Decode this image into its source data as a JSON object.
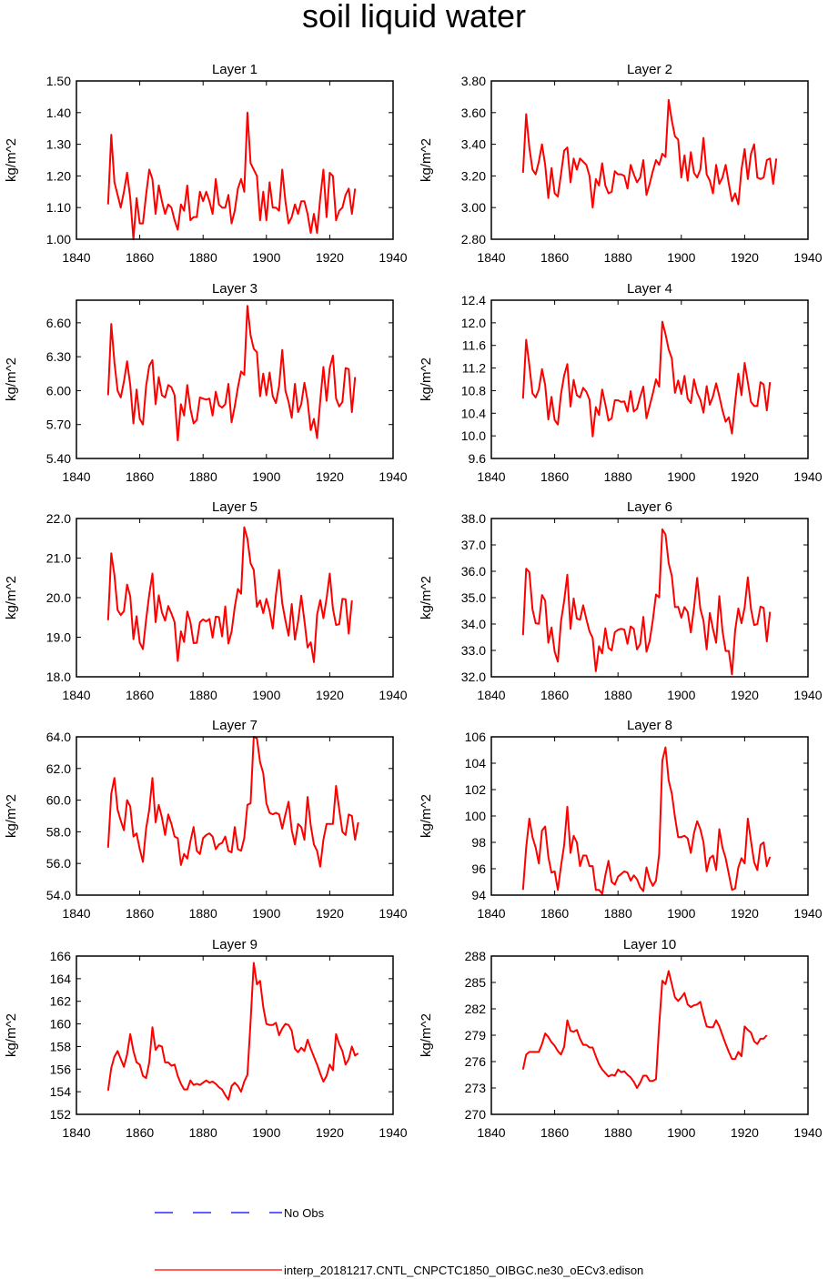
{
  "title": "soil liquid water",
  "legend": {
    "obs_label": "No Obs",
    "model_label": "interp_20181217.CNTL_CNPCTC1850_OIBGC.ne30_oECv3.edison",
    "obs_color": "#0000ff",
    "model_color": "#ff0000"
  },
  "chart_data": [
    {
      "type": "line",
      "title": "Layer 1",
      "xlabel": "",
      "ylabel": "kg/m^2",
      "xlim": [
        1840,
        1940
      ],
      "ylim": [
        1.0,
        1.5
      ],
      "xticks": [
        "1840",
        "1860",
        "1880",
        "1900",
        "1920",
        "1940"
      ],
      "yticks": [
        "1.00",
        "1.10",
        "1.20",
        "1.30",
        "1.40",
        "1.50"
      ],
      "x_start": 1850,
      "values": [
        1.11,
        1.33,
        1.18,
        1.14,
        1.1,
        1.15,
        1.21,
        1.13,
        1.0,
        1.13,
        1.05,
        1.05,
        1.14,
        1.22,
        1.19,
        1.08,
        1.17,
        1.12,
        1.08,
        1.11,
        1.1,
        1.06,
        1.03,
        1.11,
        1.09,
        1.17,
        1.06,
        1.07,
        1.07,
        1.15,
        1.12,
        1.15,
        1.12,
        1.08,
        1.19,
        1.11,
        1.1,
        1.1,
        1.14,
        1.05,
        1.09,
        1.16,
        1.19,
        1.15,
        1.4,
        1.24,
        1.22,
        1.2,
        1.06,
        1.15,
        1.06,
        1.18,
        1.1,
        1.1,
        1.09,
        1.22,
        1.12,
        1.05,
        1.07,
        1.11,
        1.08,
        1.12,
        1.12,
        1.08,
        1.02,
        1.08,
        1.02,
        1.13,
        1.22,
        1.07,
        1.21,
        1.2,
        1.06,
        1.09,
        1.1,
        1.14,
        1.16,
        1.08,
        1.16
      ]
    },
    {
      "type": "line",
      "title": "Layer 2",
      "xlabel": "",
      "ylabel": "kg/m^2",
      "xlim": [
        1840,
        1940
      ],
      "ylim": [
        2.8,
        3.8
      ],
      "xticks": [
        "1840",
        "1860",
        "1880",
        "1900",
        "1920",
        "1940"
      ],
      "yticks": [
        "2.80",
        "3.00",
        "3.20",
        "3.40",
        "3.60",
        "3.80"
      ],
      "x_start": 1850,
      "values": [
        3.22,
        3.59,
        3.38,
        3.24,
        3.21,
        3.29,
        3.4,
        3.27,
        3.06,
        3.25,
        3.09,
        3.07,
        3.21,
        3.36,
        3.38,
        3.16,
        3.31,
        3.24,
        3.31,
        3.29,
        3.27,
        3.2,
        3.0,
        3.18,
        3.14,
        3.28,
        3.14,
        3.09,
        3.1,
        3.23,
        3.21,
        3.21,
        3.2,
        3.12,
        3.27,
        3.21,
        3.16,
        3.19,
        3.3,
        3.08,
        3.15,
        3.23,
        3.3,
        3.27,
        3.34,
        3.32,
        3.68,
        3.55,
        3.45,
        3.43,
        3.19,
        3.33,
        3.17,
        3.35,
        3.22,
        3.19,
        3.24,
        3.44,
        3.21,
        3.17,
        3.09,
        3.27,
        3.15,
        3.19,
        3.27,
        3.15,
        3.04,
        3.09,
        3.02,
        3.24,
        3.37,
        3.18,
        3.34,
        3.4,
        3.19,
        3.18,
        3.19,
        3.3,
        3.31,
        3.15,
        3.31
      ]
    },
    {
      "type": "line",
      "title": "Layer 3",
      "xlabel": "",
      "ylabel": "kg/m^2",
      "xlim": [
        1840,
        1940
      ],
      "ylim": [
        5.4,
        6.8
      ],
      "xticks": [
        "1840",
        "1860",
        "1880",
        "1900",
        "1920",
        "1940"
      ],
      "yticks": [
        "5.40",
        "5.70",
        "6.00",
        "6.30",
        "6.60"
      ],
      "x_start": 1850,
      "values": [
        5.96,
        6.59,
        6.25,
        6.0,
        5.94,
        6.08,
        6.26,
        6.05,
        5.71,
        6.01,
        5.75,
        5.7,
        6.04,
        6.22,
        6.27,
        5.88,
        6.12,
        5.96,
        5.94,
        6.05,
        6.03,
        5.96,
        5.56,
        5.88,
        5.78,
        6.05,
        5.84,
        5.71,
        5.74,
        5.94,
        5.93,
        5.92,
        5.93,
        5.78,
        5.99,
        5.87,
        5.85,
        5.88,
        6.06,
        5.72,
        5.86,
        6.03,
        6.17,
        6.14,
        6.75,
        6.49,
        6.37,
        6.34,
        5.95,
        6.15,
        5.96,
        6.16,
        5.95,
        5.89,
        6.04,
        6.36,
        6.0,
        5.9,
        5.76,
        6.06,
        5.81,
        5.88,
        6.07,
        5.91,
        5.65,
        5.75,
        5.58,
        5.91,
        6.21,
        5.91,
        6.2,
        6.31,
        5.93,
        5.86,
        5.9,
        6.2,
        6.19,
        5.81,
        6.12
      ]
    },
    {
      "type": "line",
      "title": "Layer 4",
      "xlabel": "",
      "ylabel": "kg/m^2",
      "xlim": [
        1840,
        1940
      ],
      "ylim": [
        9.6,
        12.4
      ],
      "xticks": [
        "1840",
        "1860",
        "1880",
        "1900",
        "1920",
        "1940"
      ],
      "yticks": [
        "9.6",
        "10.0",
        "10.4",
        "10.8",
        "11.2",
        "11.6",
        "12.0",
        "12.4"
      ],
      "x_start": 1850,
      "values": [
        10.66,
        11.7,
        11.25,
        10.75,
        10.68,
        10.82,
        11.18,
        10.9,
        10.29,
        10.69,
        10.28,
        10.2,
        10.74,
        11.07,
        11.27,
        10.52,
        10.99,
        10.72,
        10.68,
        10.85,
        10.78,
        10.64,
        9.99,
        10.51,
        10.37,
        10.82,
        10.56,
        10.27,
        10.31,
        10.63,
        10.63,
        10.6,
        10.61,
        10.43,
        10.79,
        10.43,
        10.48,
        10.69,
        10.87,
        10.31,
        10.53,
        10.75,
        11.0,
        10.87,
        12.02,
        11.8,
        11.53,
        11.37,
        10.76,
        10.98,
        10.74,
        11.06,
        10.66,
        10.58,
        11.0,
        10.76,
        10.64,
        10.41,
        10.88,
        10.55,
        10.7,
        10.93,
        10.7,
        10.45,
        10.25,
        10.33,
        10.04,
        10.6,
        11.1,
        10.72,
        11.29,
        10.95,
        10.6,
        10.53,
        10.53,
        10.95,
        10.91,
        10.45,
        10.95
      ]
    },
    {
      "type": "line",
      "title": "Layer 5",
      "xlabel": "",
      "ylabel": "kg/m^2",
      "xlim": [
        1840,
        1940
      ],
      "ylim": [
        18.0,
        22.0
      ],
      "xticks": [
        "1840",
        "1860",
        "1880",
        "1900",
        "1920",
        "1940"
      ],
      "yticks": [
        "18.0",
        "19.0",
        "20.0",
        "21.0",
        "22.0"
      ],
      "x_start": 1850,
      "values": [
        19.43,
        21.12,
        20.57,
        19.69,
        19.56,
        19.66,
        20.33,
        20.03,
        18.95,
        19.53,
        18.86,
        18.7,
        19.44,
        20.08,
        20.61,
        19.38,
        20.06,
        19.63,
        19.42,
        19.79,
        19.6,
        19.38,
        18.4,
        19.15,
        18.88,
        19.65,
        19.38,
        18.85,
        18.86,
        19.38,
        19.45,
        19.4,
        19.46,
        18.99,
        19.52,
        19.51,
        19.02,
        19.78,
        18.84,
        19.14,
        19.76,
        20.22,
        20.1,
        21.78,
        21.49,
        20.87,
        20.7,
        19.77,
        19.93,
        19.61,
        19.97,
        19.67,
        19.22,
        20.07,
        20.7,
        19.86,
        19.42,
        19.04,
        19.84,
        18.94,
        19.4,
        20.05,
        19.42,
        18.74,
        18.87,
        18.37,
        19.57,
        19.94,
        19.48,
        19.98,
        20.61,
        19.72,
        19.31,
        19.33,
        19.97,
        19.96,
        19.09,
        19.93
      ]
    },
    {
      "type": "line",
      "title": "Layer 6",
      "xlabel": "",
      "ylabel": "kg/m^2",
      "xlim": [
        1840,
        1940
      ],
      "ylim": [
        32.0,
        38.0
      ],
      "xticks": [
        "1840",
        "1860",
        "1880",
        "1900",
        "1920",
        "1940"
      ],
      "yticks": [
        "32.0",
        "33.0",
        "34.0",
        "35.0",
        "36.0",
        "37.0",
        "38.0"
      ],
      "x_start": 1850,
      "values": [
        33.58,
        36.1,
        35.97,
        34.56,
        34.03,
        34.01,
        35.1,
        34.89,
        33.29,
        33.87,
        32.95,
        32.57,
        34.1,
        34.88,
        35.87,
        33.82,
        34.97,
        34.21,
        34.16,
        34.71,
        34.19,
        33.72,
        33.47,
        32.21,
        33.16,
        32.89,
        33.84,
        33.1,
        33.0,
        33.69,
        33.78,
        33.82,
        33.79,
        33.25,
        33.91,
        33.81,
        33.04,
        33.24,
        34.27,
        32.95,
        33.36,
        34.15,
        35.12,
        35.01,
        37.59,
        37.4,
        36.31,
        35.82,
        34.64,
        34.65,
        34.24,
        34.64,
        34.46,
        33.68,
        34.61,
        35.75,
        34.58,
        34.13,
        33.04,
        34.42,
        33.81,
        33.29,
        35.06,
        33.74,
        32.98,
        32.98,
        32.09,
        33.76,
        34.59,
        34.03,
        34.63,
        35.77,
        34.57,
        33.96,
        34.0,
        34.66,
        34.61,
        33.34,
        34.46
      ]
    },
    {
      "type": "line",
      "title": "Layer 7",
      "xlabel": "",
      "ylabel": "kg/m^2",
      "xlim": [
        1840,
        1940
      ],
      "ylim": [
        54.0,
        64.0
      ],
      "xticks": [
        "1840",
        "1860",
        "1880",
        "1900",
        "1920",
        "1940"
      ],
      "yticks": [
        "54.0",
        "56.0",
        "58.0",
        "60.0",
        "62.0",
        "64.0"
      ],
      "x_start": 1850,
      "values": [
        57.0,
        60.4,
        61.4,
        59.4,
        58.7,
        58.1,
        60.0,
        59.6,
        57.7,
        57.9,
        56.9,
        56.1,
        58.2,
        59.4,
        61.4,
        58.6,
        59.7,
        58.9,
        57.8,
        59.1,
        58.5,
        57.7,
        57.6,
        55.9,
        56.6,
        56.3,
        57.4,
        58.3,
        56.8,
        56.6,
        57.6,
        57.8,
        57.9,
        57.7,
        56.9,
        57.2,
        57.3,
        57.7,
        56.8,
        56.7,
        58.3,
        56.9,
        56.8,
        57.6,
        59.7,
        59.8,
        64.0,
        63.9,
        62.4,
        61.7,
        59.8,
        59.2,
        59.1,
        59.2,
        59.1,
        58.2,
        59.1,
        59.9,
        58.1,
        57.2,
        58.5,
        58.3,
        57.5,
        60.2,
        58.4,
        57.2,
        56.8,
        55.8,
        57.5,
        58.5,
        58.5,
        58.5,
        60.9,
        59.4,
        58.0,
        57.8,
        59.1,
        59.0,
        57.5,
        58.6
      ]
    },
    {
      "type": "line",
      "title": "Layer 8",
      "xlabel": "",
      "ylabel": "kg/m^2",
      "xlim": [
        1840,
        1940
      ],
      "ylim": [
        94,
        106
      ],
      "xticks": [
        "1840",
        "1860",
        "1880",
        "1900",
        "1920",
        "1940"
      ],
      "yticks": [
        "94",
        "96",
        "98",
        "100",
        "102",
        "104",
        "106"
      ],
      "x_start": 1850,
      "values": [
        94.4,
        97.6,
        99.8,
        98.4,
        97.6,
        96.4,
        98.9,
        99.2,
        96.9,
        95.7,
        95.8,
        94.4,
        96.2,
        97.8,
        100.7,
        97.2,
        98.5,
        98.0,
        96.2,
        97.0,
        97.0,
        96.2,
        96.2,
        94.4,
        94.4,
        94.1,
        95.5,
        96.6,
        95.0,
        94.8,
        95.4,
        95.6,
        95.8,
        95.7,
        95.1,
        95.5,
        95.2,
        94.6,
        94.3,
        96.1,
        95.2,
        94.7,
        95.1,
        97.1,
        104.2,
        105.2,
        102.7,
        101.7,
        99.9,
        98.4,
        98.4,
        98.5,
        98.3,
        97.2,
        98.7,
        99.6,
        99.0,
        98.0,
        95.8,
        96.8,
        97.0,
        95.9,
        99.0,
        97.6,
        96.8,
        95.6,
        94.4,
        94.5,
        96.1,
        96.8,
        96.4,
        99.8,
        98.1,
        96.5,
        95.9,
        97.8,
        98.0,
        96.2,
        96.9
      ]
    },
    {
      "type": "line",
      "title": "Layer 9",
      "xlabel": "",
      "ylabel": "kg/m^2",
      "xlim": [
        1840,
        1940
      ],
      "ylim": [
        152,
        166
      ],
      "xticks": [
        "1840",
        "1860",
        "1880",
        "1900",
        "1920",
        "1940"
      ],
      "yticks": [
        "152",
        "154",
        "156",
        "158",
        "160",
        "162",
        "164",
        "166"
      ],
      "x_start": 1850,
      "values": [
        154.1,
        156.1,
        157.1,
        157.6,
        156.9,
        156.2,
        157.3,
        159.1,
        157.6,
        156.6,
        156.4,
        155.4,
        155.2,
        156.6,
        159.7,
        157.7,
        158.1,
        158.0,
        156.6,
        156.6,
        156.3,
        156.4,
        155.4,
        154.7,
        154.2,
        154.2,
        155.0,
        154.6,
        154.7,
        154.6,
        154.8,
        155.0,
        154.8,
        154.9,
        154.7,
        154.4,
        154.2,
        153.7,
        153.3,
        154.5,
        154.8,
        154.5,
        154.0,
        154.9,
        155.5,
        160.2,
        165.4,
        163.5,
        163.8,
        161.5,
        160.0,
        159.9,
        159.9,
        160.1,
        159.0,
        159.6,
        160.0,
        159.9,
        159.4,
        157.8,
        157.5,
        157.9,
        157.6,
        158.6,
        157.8,
        157.1,
        156.4,
        155.6,
        154.9,
        155.4,
        156.4,
        155.9,
        159.1,
        158.2,
        157.6,
        156.4,
        156.9,
        158.0,
        157.2,
        157.4
      ]
    },
    {
      "type": "line",
      "title": "Layer 10",
      "xlabel": "",
      "ylabel": "kg/m^2",
      "xlim": [
        1840,
        1940
      ],
      "ylim": [
        270,
        288
      ],
      "xticks": [
        "1840",
        "1860",
        "1880",
        "1900",
        "1920",
        "1940"
      ],
      "yticks": [
        "270",
        "273",
        "276",
        "279",
        "282",
        "285",
        "288"
      ],
      "x_start": 1850,
      "values": [
        275.1,
        276.8,
        277.1,
        277.1,
        277.1,
        277.1,
        278.0,
        279.2,
        278.8,
        278.2,
        277.8,
        277.2,
        276.8,
        277.7,
        280.7,
        279.5,
        279.4,
        279.6,
        278.6,
        277.9,
        277.9,
        277.6,
        277.6,
        276.6,
        275.7,
        275.1,
        274.7,
        274.3,
        274.5,
        274.4,
        275.1,
        274.8,
        274.9,
        274.5,
        274.2,
        273.7,
        273.0,
        273.6,
        274.4,
        274.4,
        273.8,
        273.8,
        274.0,
        280.1,
        285.2,
        284.8,
        286.3,
        284.8,
        283.3,
        282.9,
        283.3,
        283.8,
        282.5,
        282.2,
        282.4,
        282.5,
        282.8,
        281.3,
        280.0,
        279.9,
        279.9,
        280.7,
        280.0,
        279.0,
        278.0,
        277.1,
        276.3,
        276.3,
        277.1,
        276.6,
        280.0,
        279.6,
        279.3,
        278.3,
        278.0,
        278.6,
        278.6,
        279.0
      ]
    }
  ]
}
